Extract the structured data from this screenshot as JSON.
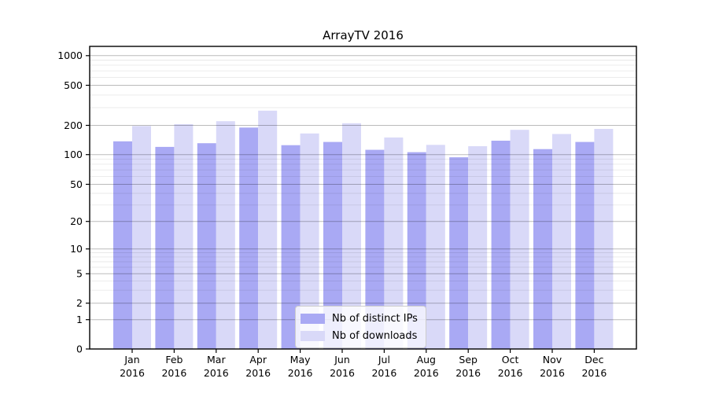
{
  "chart_data": {
    "type": "bar",
    "title": "ArrayTV 2016",
    "categories": [
      "Jan 2016",
      "Feb 2016",
      "Mar 2016",
      "Apr 2016",
      "May 2016",
      "Jun 2016",
      "Jul 2016",
      "Aug 2016",
      "Sep 2016",
      "Oct 2016",
      "Nov 2016",
      "Dec 2016"
    ],
    "series": [
      {
        "name": "Nb of distinct IPs",
        "color": "#a9a9f4",
        "values": [
          137,
          120,
          131,
          190,
          125,
          135,
          112,
          106,
          94,
          139,
          114,
          135
        ]
      },
      {
        "name": "Nb of downloads",
        "color": "#d9d9f8",
        "values": [
          197,
          206,
          220,
          280,
          165,
          210,
          150,
          126,
          122,
          180,
          163,
          184
        ]
      }
    ],
    "xlabel": "",
    "ylabel": "",
    "yscale": "symlog",
    "ylim": [
      0,
      1250
    ],
    "yticks": [
      0,
      1,
      2,
      5,
      10,
      20,
      50,
      100,
      200,
      500,
      1000
    ],
    "grid": "both",
    "legend": {
      "position": "lower center",
      "entries": [
        "Nb of distinct IPs",
        "Nb of downloads"
      ]
    }
  }
}
